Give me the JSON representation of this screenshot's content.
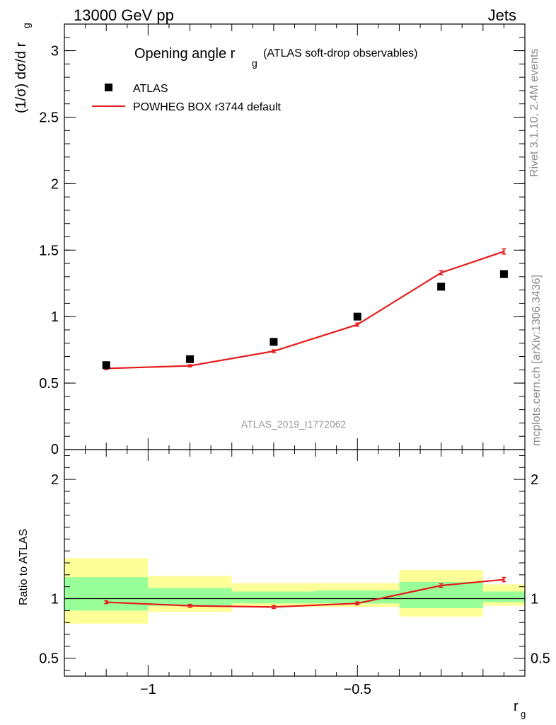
{
  "header": {
    "left": "13000 GeV pp",
    "right": "Jets"
  },
  "side_labels": {
    "rivet": "Rivet 3.1.10,  2.4M events",
    "mcplots": "mcplots.cern.ch [arXiv:1306.3436]"
  },
  "chart_data": [
    {
      "type": "scatter",
      "title_main": "Opening angle r",
      "title_sub": "g",
      "title_note": "(ATLAS soft-drop observables)",
      "watermark": "ATLAS_2019_I1772062",
      "ylabel": "(1/σ) dσ/d r",
      "ylabel_sub": "g",
      "xlim": [
        -1.2,
        -0.1
      ],
      "ylim": [
        0,
        3.2
      ],
      "yticks": [
        0.5,
        1,
        1.5,
        2,
        2.5,
        3
      ],
      "ytick_labels": [
        "0.5",
        "1",
        "1.5",
        "2",
        "2.5",
        "3"
      ],
      "y_zero_label": "0",
      "legend_position": "top-left",
      "series": [
        {
          "name": "ATLAS",
          "kind": "markers",
          "color": "#000000",
          "x": [
            -1.1,
            -0.9,
            -0.7,
            -0.5,
            -0.3,
            -0.15
          ],
          "y": [
            0.635,
            0.68,
            0.81,
            1.0,
            1.225,
            1.32
          ]
        },
        {
          "name": "POWHEG BOX r3744 default",
          "kind": "line",
          "color": "#e41a1c",
          "x": [
            -1.1,
            -0.9,
            -0.7,
            -0.5,
            -0.3,
            -0.15
          ],
          "y": [
            0.61,
            0.63,
            0.74,
            0.94,
            1.33,
            1.49
          ],
          "yerr": [
            0.008,
            0.008,
            0.01,
            0.012,
            0.015,
            0.02
          ]
        }
      ]
    },
    {
      "type": "line",
      "ylabel": "Ratio to ATLAS",
      "xlabel": "r",
      "xlabel_sub": "g",
      "xlim": [
        -1.2,
        -0.1
      ],
      "ylim": [
        0.35,
        2.25
      ],
      "xticks": [
        -1,
        -0.5
      ],
      "xtick_labels": [
        "−1",
        "−0.5"
      ],
      "yticks": [
        0.5,
        1,
        2
      ],
      "ytick_labels": [
        "0.5",
        "1",
        "2"
      ],
      "bins": [
        {
          "lo": -1.2,
          "hi": -1.0,
          "yellow": [
            0.79,
            1.34
          ],
          "green": [
            0.9,
            1.18
          ]
        },
        {
          "lo": -1.0,
          "hi": -0.8,
          "yellow": [
            0.89,
            1.19
          ],
          "green": [
            0.94,
            1.09
          ]
        },
        {
          "lo": -0.8,
          "hi": -0.6,
          "yellow": [
            0.93,
            1.13
          ],
          "green": [
            0.96,
            1.06
          ]
        },
        {
          "lo": -0.6,
          "hi": -0.4,
          "yellow": [
            0.93,
            1.13
          ],
          "green": [
            0.96,
            1.07
          ]
        },
        {
          "lo": -0.4,
          "hi": -0.2,
          "yellow": [
            0.85,
            1.24
          ],
          "green": [
            0.92,
            1.14
          ]
        },
        {
          "lo": -0.2,
          "hi": -0.1,
          "yellow": [
            0.94,
            1.12
          ],
          "green": [
            0.97,
            1.06
          ]
        }
      ],
      "series": [
        {
          "name": "POWHEG BOX r3744 default",
          "color": "#e41a1c",
          "x": [
            -1.1,
            -0.9,
            -0.7,
            -0.5,
            -0.3,
            -0.15
          ],
          "y": [
            0.97,
            0.94,
            0.93,
            0.96,
            1.11,
            1.16
          ],
          "yerr": [
            0.012,
            0.012,
            0.012,
            0.012,
            0.015,
            0.018
          ]
        }
      ]
    }
  ]
}
